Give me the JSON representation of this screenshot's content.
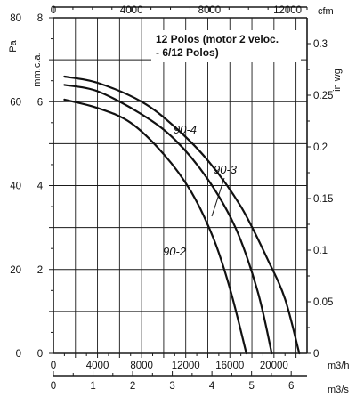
{
  "chart_data": {
    "type": "line",
    "note_lines": [
      "12 Polos (motor 2 veloc.",
      "- 6/12 Polos)"
    ],
    "axes": {
      "left_pa": {
        "label": "Pa",
        "range": [
          0,
          80
        ],
        "ticks": [
          "0",
          "20",
          "40",
          "60",
          "80"
        ]
      },
      "left_mmca": {
        "label": "mm.c.a.",
        "range": [
          0,
          8
        ],
        "ticks": [
          "0",
          "2",
          "4",
          "6",
          "8"
        ]
      },
      "right_inwg": {
        "label": "in wg",
        "range": [
          0,
          0.325
        ],
        "ticks": [
          "0",
          "0.05",
          "0.1",
          "0.15",
          "0.2",
          "0.25",
          "0.3"
        ]
      },
      "top_cfm": {
        "label": "cfm",
        "range": [
          0,
          13000
        ],
        "ticks": [
          "0",
          "4000",
          "8000",
          "12000"
        ]
      },
      "bottom_m3h": {
        "label": "m3/h",
        "range": [
          0,
          23000
        ],
        "ticks": [
          "0",
          "4000",
          "8000",
          "12000",
          "16000",
          "20000"
        ]
      },
      "bottom_m3s": {
        "label": "m3/s",
        "range": [
          0,
          6.4
        ],
        "ticks": [
          "0",
          "1",
          "2",
          "3",
          "4",
          "5",
          "6"
        ]
      }
    },
    "grid": true,
    "series": [
      {
        "name": "90-4",
        "x_m3h": [
          1000,
          4000,
          8000,
          11000,
          14000,
          17000,
          19500,
          21000,
          22300
        ],
        "y_pa": [
          66,
          64.5,
          60,
          54,
          46,
          35,
          22,
          13,
          0
        ]
      },
      {
        "name": "90-3",
        "x_m3h": [
          1000,
          4000,
          8000,
          11000,
          14000,
          16500,
          18500,
          19800
        ],
        "y_pa": [
          64,
          62.5,
          57,
          51,
          41.5,
          30,
          15,
          0
        ]
      },
      {
        "name": "90-2",
        "x_m3h": [
          1000,
          4000,
          7000,
          10000,
          12500,
          14500,
          16000,
          17500
        ],
        "y_pa": [
          60.5,
          58.5,
          55,
          47.5,
          38.5,
          27.5,
          15.5,
          0
        ]
      }
    ]
  }
}
